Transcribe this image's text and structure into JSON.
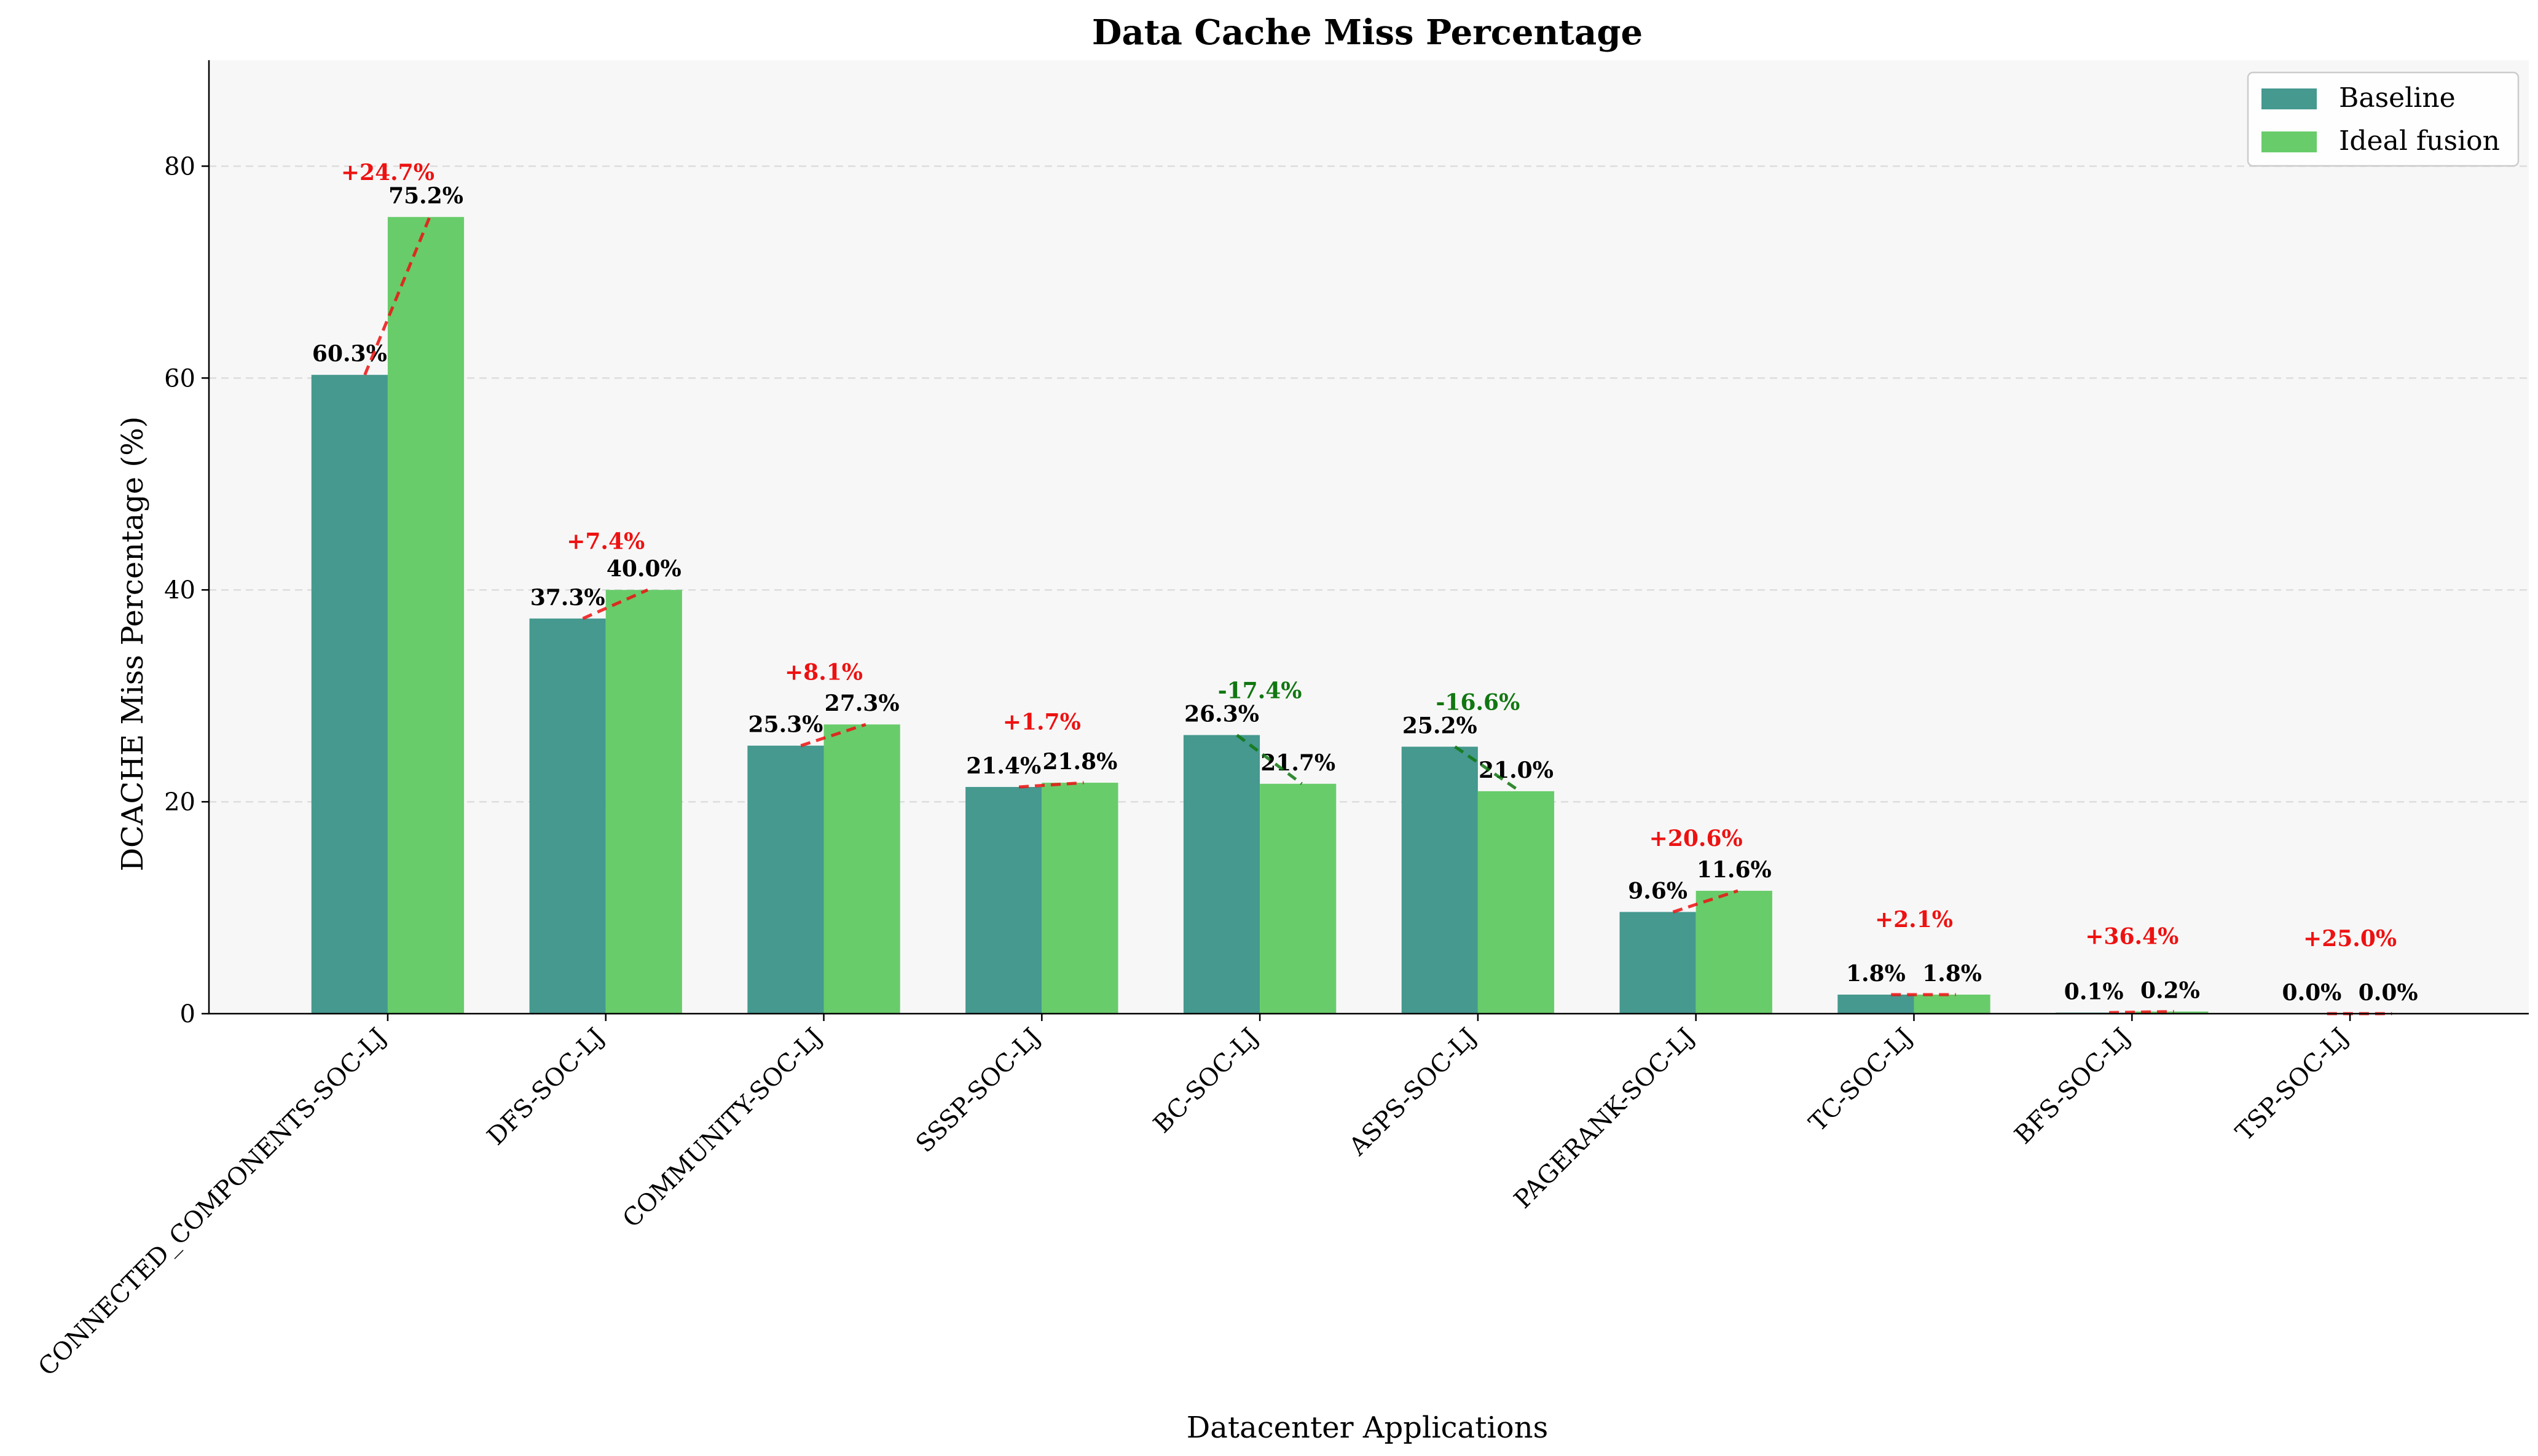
{
  "chart_data": {
    "type": "bar",
    "title": "Data Cache Miss Percentage",
    "xlabel": "Datacenter Applications",
    "ylabel": "DCACHE Miss Percentage (%)",
    "ylim": [
      0,
      90
    ],
    "yticks": [
      0,
      20,
      40,
      60,
      80
    ],
    "grid": "horizontal dashed",
    "legend_position": "top-right",
    "categories": [
      "CONNECTED_COMPONENTS-SOC-LJ",
      "DFS-SOC-LJ",
      "COMMUNITY-SOC-LJ",
      "SSSP-SOC-LJ",
      "BC-SOC-LJ",
      "ASPS-SOC-LJ",
      "PAGERANK-SOC-LJ",
      "TC-SOC-LJ",
      "BFS-SOC-LJ",
      "TSP-SOC-LJ"
    ],
    "series": [
      {
        "name": "Baseline",
        "color": "#45998f",
        "values": [
          60.3,
          37.3,
          25.3,
          21.4,
          26.3,
          25.2,
          9.6,
          1.8,
          0.1,
          0.0
        ],
        "labels": [
          "60.3%",
          "37.3%",
          "25.3%",
          "21.4%",
          "26.3%",
          "25.2%",
          "9.6%",
          "1.8%",
          "0.1%",
          "0.0%"
        ]
      },
      {
        "name": "Ideal fusion",
        "color": "#68cc6a",
        "values": [
          75.2,
          40.0,
          27.3,
          21.8,
          21.7,
          21.0,
          11.6,
          1.8,
          0.2,
          0.0
        ],
        "labels": [
          "75.2%",
          "40.0%",
          "27.3%",
          "21.8%",
          "21.7%",
          "21.0%",
          "11.6%",
          "1.8%",
          "0.2%",
          "0.0%"
        ]
      }
    ],
    "changes": [
      {
        "label": "+24.7%",
        "color": "#ee1111"
      },
      {
        "label": "+7.4%",
        "color": "#ee1111"
      },
      {
        "label": "+8.1%",
        "color": "#ee1111"
      },
      {
        "label": "+1.7%",
        "color": "#ee1111"
      },
      {
        "label": "-17.4%",
        "color": "#117711"
      },
      {
        "label": "-16.6%",
        "color": "#117711"
      },
      {
        "label": "+20.6%",
        "color": "#ee1111"
      },
      {
        "label": "+2.1%",
        "color": "#ee1111"
      },
      {
        "label": "+36.4%",
        "color": "#ee1111"
      },
      {
        "label": "+25.0%",
        "color": "#ee1111"
      }
    ],
    "plot_background": "#f7f7f7"
  }
}
